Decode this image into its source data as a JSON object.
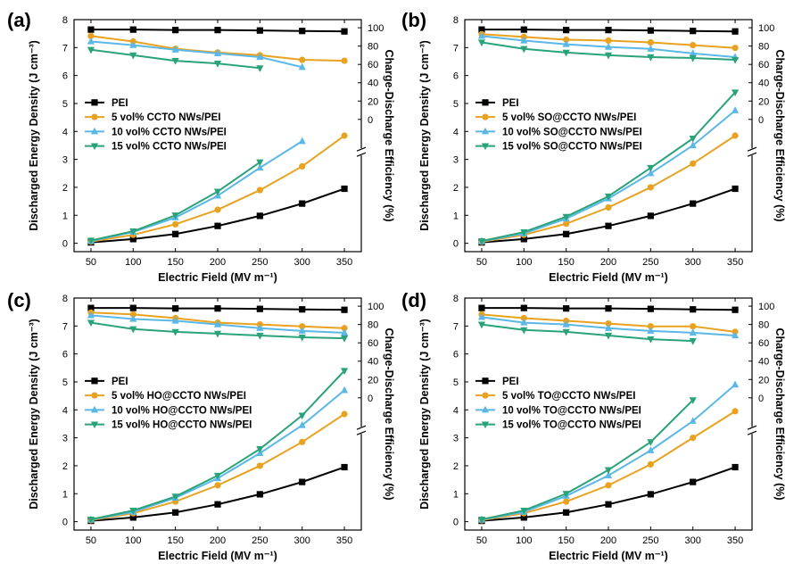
{
  "chart_data": [
    {
      "type": "line",
      "panel_label": "(a)",
      "xlabel": "Electric Field (MV m⁻¹)",
      "ylabel_left": "Discharged Energy Density (J cm⁻³)",
      "ylabel_right": "Charge-Discharge Efficiency (%)",
      "x_ticks": [
        "50",
        "100",
        "150",
        "200",
        "250",
        "300",
        "350"
      ],
      "y_left_ticks": [
        "0",
        "1",
        "2",
        "3",
        "4",
        "5",
        "6",
        "7",
        "8"
      ],
      "y_right_ticks": [
        "0",
        "20",
        "40",
        "60",
        "80",
        "100"
      ],
      "xlim": [
        30,
        370
      ],
      "ylim_left": [
        -0.3,
        8
      ],
      "legend_position": "middle-left",
      "series": [
        {
          "name": "PEI",
          "color": "#000000",
          "marker": "square",
          "energy_density": {
            "x": [
              50,
              100,
              150,
              200,
              250,
              300,
              350
            ],
            "y": [
              0.03,
              0.15,
              0.33,
              0.62,
              0.98,
              1.42,
              1.95
            ]
          },
          "efficiency": {
            "x": [
              50,
              100,
              150,
              200,
              250,
              300,
              350
            ],
            "y": [
              98,
              98,
              97.5,
              97.5,
              97,
              96.5,
              96
            ]
          }
        },
        {
          "name": "5 vol% CCTO NWs/PEI",
          "color": "#E8A21F",
          "marker": "circle",
          "energy_density": {
            "x": [
              50,
              100,
              150,
              200,
              250,
              300,
              350
            ],
            "y": [
              0.06,
              0.3,
              0.68,
              1.2,
              1.9,
              2.75,
              3.85
            ]
          },
          "efficiency": {
            "x": [
              50,
              100,
              150,
              200,
              250,
              300,
              350
            ],
            "y": [
              91,
              85,
              77,
              73,
              70,
              65,
              64
            ]
          }
        },
        {
          "name": "10 vol% CCTO NWs/PEI",
          "color": "#5BB8E6",
          "marker": "triangle-up",
          "energy_density": {
            "x": [
              50,
              100,
              150,
              200,
              250,
              300
            ],
            "y": [
              0.08,
              0.4,
              0.92,
              1.7,
              2.7,
              3.65
            ]
          },
          "efficiency": {
            "x": [
              50,
              100,
              150,
              200,
              250,
              300
            ],
            "y": [
              85,
              81,
              76,
              72,
              68,
              57
            ]
          }
        },
        {
          "name": "15 vol% CCTO NWs/PEI",
          "color": "#2AA37A",
          "marker": "triangle-down",
          "energy_density": {
            "x": [
              50,
              100,
              150,
              200,
              250
            ],
            "y": [
              0.1,
              0.43,
              1.0,
              1.85,
              2.9
            ]
          },
          "efficiency": {
            "x": [
              50,
              100,
              150,
              200,
              250
            ],
            "y": [
              76,
              70,
              64,
              61,
              56
            ]
          }
        }
      ]
    },
    {
      "type": "line",
      "panel_label": "(b)",
      "xlabel": "Electric Field (MV m⁻¹)",
      "ylabel_left": "Discharged Energy Density (J cm⁻³)",
      "ylabel_right": "Charge-Discharge Efficiency (%)",
      "x_ticks": [
        "50",
        "100",
        "150",
        "200",
        "250",
        "300",
        "350"
      ],
      "y_left_ticks": [
        "0",
        "1",
        "2",
        "3",
        "4",
        "5",
        "6",
        "7",
        "8"
      ],
      "y_right_ticks": [
        "0",
        "20",
        "40",
        "60",
        "80",
        "100"
      ],
      "xlim": [
        30,
        370
      ],
      "ylim_left": [
        -0.3,
        8
      ],
      "legend_position": "middle-left",
      "series": [
        {
          "name": "PEI",
          "color": "#000000",
          "marker": "square",
          "energy_density": {
            "x": [
              50,
              100,
              150,
              200,
              250,
              300,
              350
            ],
            "y": [
              0.03,
              0.15,
              0.33,
              0.62,
              0.98,
              1.42,
              1.95
            ]
          },
          "efficiency": {
            "x": [
              50,
              100,
              150,
              200,
              250,
              300,
              350
            ],
            "y": [
              98,
              98,
              97.5,
              97.5,
              97,
              96.5,
              96
            ]
          }
        },
        {
          "name": "5 vol% SO@CCTO NWs/PEI",
          "color": "#E8A21F",
          "marker": "circle",
          "energy_density": {
            "x": [
              50,
              100,
              150,
              200,
              250,
              300,
              350
            ],
            "y": [
              0.05,
              0.3,
              0.7,
              1.28,
              2.0,
              2.85,
              3.85
            ]
          },
          "efficiency": {
            "x": [
              50,
              100,
              150,
              200,
              250,
              300,
              350
            ],
            "y": [
              93,
              90,
              87,
              86,
              84,
              81,
              78
            ]
          }
        },
        {
          "name": "10 vol% SO@CCTO NWs/PEI",
          "color": "#5BB8E6",
          "marker": "triangle-up",
          "energy_density": {
            "x": [
              50,
              100,
              150,
              200,
              250,
              300,
              350
            ],
            "y": [
              0.07,
              0.35,
              0.88,
              1.6,
              2.5,
              3.5,
              4.75
            ]
          },
          "efficiency": {
            "x": [
              50,
              100,
              150,
              200,
              250,
              300,
              350
            ],
            "y": [
              91,
              86,
              82,
              79,
              77,
              72,
              68
            ]
          }
        },
        {
          "name": "15 vol% SO@CCTO NWs/PEI",
          "color": "#2AA37A",
          "marker": "triangle-down",
          "energy_density": {
            "x": [
              50,
              100,
              150,
              200,
              250,
              300,
              350
            ],
            "y": [
              0.08,
              0.4,
              0.95,
              1.68,
              2.7,
              3.75,
              5.4
            ]
          },
          "efficiency": {
            "x": [
              50,
              100,
              150,
              200,
              250,
              300,
              350
            ],
            "y": [
              84,
              77,
              73,
              70,
              68,
              67,
              65
            ]
          }
        }
      ]
    },
    {
      "type": "line",
      "panel_label": "(c)",
      "xlabel": "Electric Field (MV m⁻¹)",
      "ylabel_left": "Discharged Energy Density (J cm⁻³)",
      "ylabel_right": "Charge-Discharge Efficiency (%)",
      "x_ticks": [
        "50",
        "100",
        "150",
        "200",
        "250",
        "300",
        "350"
      ],
      "y_left_ticks": [
        "0",
        "1",
        "2",
        "3",
        "4",
        "5",
        "6",
        "7",
        "8"
      ],
      "y_right_ticks": [
        "0",
        "20",
        "40",
        "60",
        "80",
        "100"
      ],
      "xlim": [
        30,
        370
      ],
      "ylim_left": [
        -0.3,
        8
      ],
      "legend_position": "middle-left",
      "series": [
        {
          "name": "PEI",
          "color": "#000000",
          "marker": "square",
          "energy_density": {
            "x": [
              50,
              100,
              150,
              200,
              250,
              300,
              350
            ],
            "y": [
              0.03,
              0.15,
              0.33,
              0.62,
              0.98,
              1.42,
              1.95
            ]
          },
          "efficiency": {
            "x": [
              50,
              100,
              150,
              200,
              250,
              300,
              350
            ],
            "y": [
              98,
              98,
              97.5,
              97.5,
              97,
              96.5,
              96
            ]
          }
        },
        {
          "name": "5 vol% HO@CCTO NWs/PEI",
          "color": "#E8A21F",
          "marker": "circle",
          "energy_density": {
            "x": [
              50,
              100,
              150,
              200,
              250,
              300,
              350
            ],
            "y": [
              0.05,
              0.3,
              0.72,
              1.3,
              2.0,
              2.85,
              3.85
            ]
          },
          "efficiency": {
            "x": [
              50,
              100,
              150,
              200,
              250,
              300,
              350
            ],
            "y": [
              93,
              91,
              87,
              82,
              80,
              78,
              76
            ]
          }
        },
        {
          "name": "10 vol% HO@CCTO NWs/PEI",
          "color": "#5BB8E6",
          "marker": "triangle-up",
          "energy_density": {
            "x": [
              50,
              100,
              150,
              200,
              250,
              300,
              350
            ],
            "y": [
              0.07,
              0.35,
              0.85,
              1.55,
              2.45,
              3.45,
              4.7
            ]
          },
          "efficiency": {
            "x": [
              50,
              100,
              150,
              200,
              250,
              300,
              350
            ],
            "y": [
              90,
              86,
              84,
              80,
              76,
              73,
              71
            ]
          }
        },
        {
          "name": "15 vol% HO@CCTO NWs/PEI",
          "color": "#2AA37A",
          "marker": "triangle-down",
          "energy_density": {
            "x": [
              50,
              100,
              150,
              200,
              250,
              300,
              350
            ],
            "y": [
              0.08,
              0.4,
              0.9,
              1.65,
              2.6,
              3.8,
              5.4
            ]
          },
          "efficiency": {
            "x": [
              50,
              100,
              150,
              200,
              250,
              300,
              350
            ],
            "y": [
              82,
              75,
              72,
              70,
              68,
              66,
              65
            ]
          }
        }
      ]
    },
    {
      "type": "line",
      "panel_label": "(d)",
      "xlabel": "Electric Field (MV m⁻¹)",
      "ylabel_left": "Discharged Energy Density (J cm⁻³)",
      "ylabel_right": "Charge-Discharge Efficiency (%)",
      "x_ticks": [
        "50",
        "100",
        "150",
        "200",
        "250",
        "300",
        "350"
      ],
      "y_left_ticks": [
        "0",
        "1",
        "2",
        "3",
        "4",
        "5",
        "6",
        "7",
        "8"
      ],
      "y_right_ticks": [
        "0",
        "20",
        "40",
        "60",
        "80",
        "100"
      ],
      "xlim": [
        30,
        370
      ],
      "ylim_left": [
        -0.3,
        8
      ],
      "legend_position": "middle-left",
      "series": [
        {
          "name": "PEI",
          "color": "#000000",
          "marker": "square",
          "energy_density": {
            "x": [
              50,
              100,
              150,
              200,
              250,
              300,
              350
            ],
            "y": [
              0.03,
              0.15,
              0.33,
              0.62,
              0.98,
              1.42,
              1.95
            ]
          },
          "efficiency": {
            "x": [
              50,
              100,
              150,
              200,
              250,
              300,
              350
            ],
            "y": [
              98,
              98,
              97.5,
              97.5,
              97,
              96.5,
              96
            ]
          }
        },
        {
          "name": "5 vol% TO@CCTO NWs/PEI",
          "color": "#E8A21F",
          "marker": "circle",
          "energy_density": {
            "x": [
              50,
              100,
              150,
              200,
              250,
              300,
              350
            ],
            "y": [
              0.05,
              0.3,
              0.72,
              1.3,
              2.05,
              3.0,
              3.95
            ]
          },
          "efficiency": {
            "x": [
              50,
              100,
              150,
              200,
              250,
              300,
              350
            ],
            "y": [
              91,
              87,
              84,
              81,
              78,
              78,
              72
            ]
          }
        },
        {
          "name": "10 vol% TO@CCTO NWs/PEI",
          "color": "#5BB8E6",
          "marker": "triangle-up",
          "energy_density": {
            "x": [
              50,
              100,
              150,
              200,
              250,
              300,
              350
            ],
            "y": [
              0.07,
              0.35,
              0.92,
              1.65,
              2.55,
              3.6,
              4.9
            ]
          },
          "efficiency": {
            "x": [
              50,
              100,
              150,
              200,
              250,
              300,
              350
            ],
            "y": [
              88,
              82,
              80,
              76,
              73,
              71,
              68
            ]
          }
        },
        {
          "name": "15 vol% TO@CCTO NWs/PEI",
          "color": "#2AA37A",
          "marker": "triangle-down",
          "energy_density": {
            "x": [
              50,
              100,
              150,
              200,
              250,
              300
            ],
            "y": [
              0.08,
              0.4,
              1.0,
              1.85,
              2.85,
              4.35
            ]
          },
          "efficiency": {
            "x": [
              50,
              100,
              150,
              200,
              250,
              300
            ],
            "y": [
              80,
              74,
              72,
              68,
              64,
              62
            ]
          }
        }
      ]
    }
  ]
}
